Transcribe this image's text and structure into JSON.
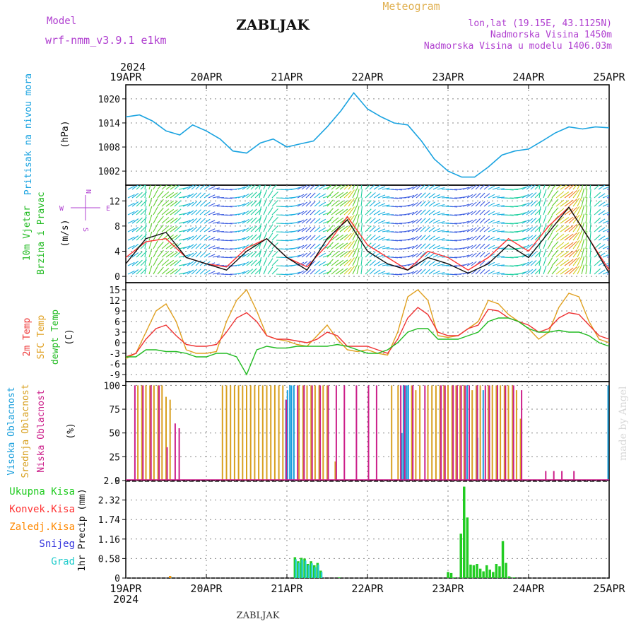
{
  "header": {
    "model_label": "Model",
    "model_name": "wrf-nmm_v3.9.1 e1km",
    "station": "ZABLJAK",
    "meteogram": "Meteogram",
    "coords": "lon,lat (19.15E, 43.1125N)",
    "elevation": "Nadmorska Visina 1450m",
    "model_elevation": "Nadmorska Visina u modelu 1406.03m",
    "year": "2024"
  },
  "footer": {
    "station": "ZABLJAK",
    "year": "2024",
    "credit": "made by Angel"
  },
  "colors": {
    "pressure": "#1aa3e0",
    "wind_speed": "#111111",
    "gust": "#ff3333",
    "t2m": "#ee3333",
    "sfc": "#e0a020",
    "dew": "#22bb22",
    "cloud_high": "#1a9fdc",
    "cloud_mid": "#d8a020",
    "cloud_low": "#cc1f8a",
    "precip_total": "#22cc22",
    "precip_conv": "#ff3333",
    "precip_frozen": "#ff8800",
    "snow": "#3333dd",
    "grad": "#22cccc",
    "purple_text": "#b040d0"
  },
  "chart_data": [
    {
      "type": "line",
      "name": "pressure",
      "ylabel": [
        "Pritisak na nivou mora",
        "(hPa)"
      ],
      "yticks": [
        1002,
        1008,
        1014,
        1020
      ],
      "ylim": [
        998.5,
        1023.5
      ],
      "x_days": [
        0,
        0.17,
        0.33,
        0.5,
        0.67,
        0.83,
        1.0,
        1.17,
        1.33,
        1.5,
        1.67,
        1.83,
        2.0,
        2.17,
        2.33,
        2.5,
        2.67,
        2.83,
        3.0,
        3.17,
        3.33,
        3.5,
        3.67,
        3.83,
        4.0,
        4.17,
        4.33,
        4.5,
        4.67,
        4.83,
        5.0,
        5.17,
        5.33,
        5.5,
        5.67,
        5.83,
        6.0
      ],
      "values": [
        1015.5,
        1016,
        1014.5,
        1012,
        1011,
        1013.5,
        1012,
        1010,
        1007,
        1006.5,
        1009,
        1010,
        1008,
        1008.8,
        1009.5,
        1013,
        1017,
        1021.5,
        1017.5,
        1015.5,
        1014,
        1013.5,
        1009.5,
        1005,
        1002,
        1000.5,
        1000.5,
        1003,
        1006,
        1007,
        1007.5,
        1009.5,
        1011.5,
        1013,
        1012.5,
        1013,
        1012.8
      ]
    },
    {
      "type": "line",
      "name": "wind",
      "ylabel": [
        "10m Vjetar",
        "Brzina i Pravac",
        "(m/s)"
      ],
      "compass": {
        "n": "N",
        "s": "S",
        "w": "W",
        "e": "E"
      },
      "yticks": [
        0,
        4,
        8,
        12
      ],
      "ylim": [
        -1,
        14.5
      ],
      "x_days": [
        0,
        0.25,
        0.5,
        0.75,
        1.0,
        1.25,
        1.5,
        1.75,
        2.0,
        2.25,
        2.5,
        2.75,
        3.0,
        3.25,
        3.5,
        3.75,
        4.0,
        4.25,
        4.5,
        4.75,
        5.0,
        5.25,
        5.5,
        5.75,
        6.0
      ],
      "series": [
        {
          "name": "speed",
          "values": [
            2,
            6,
            7,
            3,
            2,
            1,
            4,
            6,
            3,
            1,
            6,
            9,
            4,
            2,
            1,
            3,
            2,
            0.5,
            2,
            5,
            3,
            7,
            11,
            6,
            0.5
          ]
        },
        {
          "name": "gust",
          "values": [
            3,
            5.5,
            6,
            3,
            2,
            1.5,
            4.5,
            6,
            3,
            1.5,
            5,
            9.5,
            5,
            3,
            1,
            4,
            3,
            1,
            3,
            6,
            4,
            8,
            11,
            6,
            1
          ]
        }
      ]
    },
    {
      "type": "line",
      "name": "temperature",
      "ylabel": [
        "2m Temp",
        "SFC Temp",
        "dewpt Temp",
        "(C)"
      ],
      "yticks": [
        -9,
        -6,
        -3,
        0,
        3,
        6,
        9,
        12,
        15
      ],
      "ylim": [
        -11,
        17
      ],
      "x_days": [
        0,
        0.125,
        0.25,
        0.375,
        0.5,
        0.625,
        0.75,
        0.875,
        1.0,
        1.125,
        1.25,
        1.375,
        1.5,
        1.625,
        1.75,
        1.875,
        2.0,
        2.125,
        2.25,
        2.375,
        2.5,
        2.625,
        2.75,
        2.875,
        3.0,
        3.125,
        3.25,
        3.375,
        3.5,
        3.625,
        3.75,
        3.875,
        4.0,
        4.125,
        4.25,
        4.375,
        4.5,
        4.625,
        4.75,
        4.875,
        5.0,
        5.125,
        5.25,
        5.375,
        5.5,
        5.625,
        5.75,
        5.875,
        6.0
      ],
      "series": [
        {
          "name": "t2m",
          "values": [
            -4,
            -3,
            1,
            4,
            5,
            2,
            -0.5,
            -1,
            -1,
            -0.5,
            3,
            7,
            8.5,
            6,
            2,
            1,
            1,
            0.5,
            0,
            1,
            3,
            2,
            -1,
            -1,
            -1,
            -2,
            -3,
            1,
            7,
            10,
            8,
            3,
            2,
            2,
            4,
            5,
            9.5,
            9,
            7,
            6,
            5,
            3,
            4,
            7,
            8.5,
            8,
            5,
            2,
            1
          ]
        },
        {
          "name": "sfc",
          "values": [
            -4.5,
            -3,
            3,
            9,
            11,
            6,
            -2,
            -3,
            -3,
            -2.5,
            6,
            12,
            15,
            9,
            2,
            1,
            0.5,
            -0.5,
            -1,
            2,
            5,
            1,
            -2,
            -2.5,
            -2,
            -3,
            -3.5,
            3,
            13,
            15,
            12,
            2,
            1.5,
            2,
            4,
            6,
            12,
            11,
            8,
            6,
            4,
            1,
            3,
            10,
            14,
            13,
            6,
            1,
            0
          ]
        },
        {
          "name": "dew",
          "values": [
            -4,
            -4,
            -2,
            -2,
            -2.5,
            -2.5,
            -3,
            -4,
            -4,
            -3,
            -3,
            -4,
            -9,
            -2,
            -1,
            -1.5,
            -1.5,
            -1,
            -1,
            -1,
            -1,
            -0.5,
            -1,
            -2,
            -3,
            -3,
            -2,
            0,
            3,
            4,
            4,
            1,
            1,
            1,
            2,
            3,
            6,
            7,
            7,
            6,
            4,
            3,
            3,
            3.5,
            3,
            3,
            2,
            0,
            -1
          ]
        }
      ]
    },
    {
      "type": "bar",
      "name": "clouds",
      "ylabel": [
        "Visoka Oblacnost",
        "Srednja Oblacnost",
        "Niska Oblacnost",
        "(%)"
      ],
      "yticks": [
        0,
        25,
        50,
        75,
        100
      ],
      "ylim": [
        0,
        104
      ],
      "series": [
        {
          "name": "high",
          "points": [
            [
              2.0,
              85
            ],
            [
              2.02,
              95
            ],
            [
              2.05,
              100
            ],
            [
              2.07,
              100
            ],
            [
              2.1,
              100
            ],
            [
              3.44,
              50
            ],
            [
              3.46,
              100
            ],
            [
              3.48,
              100
            ],
            [
              3.5,
              100
            ],
            [
              3.52,
              100
            ],
            [
              4.25,
              100
            ],
            [
              4.38,
              45
            ],
            [
              4.45,
              95
            ],
            [
              6.0,
              100
            ]
          ]
        },
        {
          "name": "mid",
          "points": [
            [
              0.15,
              100
            ],
            [
              0.2,
              100
            ],
            [
              0.25,
              100
            ],
            [
              0.3,
              100
            ],
            [
              0.35,
              100
            ],
            [
              0.4,
              100
            ],
            [
              0.45,
              100
            ],
            [
              0.5,
              88
            ],
            [
              0.55,
              85
            ],
            [
              1.2,
              100
            ],
            [
              1.25,
              100
            ],
            [
              1.3,
              100
            ],
            [
              1.35,
              100
            ],
            [
              1.4,
              100
            ],
            [
              1.45,
              100
            ],
            [
              1.5,
              100
            ],
            [
              1.55,
              100
            ],
            [
              1.6,
              100
            ],
            [
              1.65,
              100
            ],
            [
              1.7,
              100
            ],
            [
              1.75,
              100
            ],
            [
              1.8,
              100
            ],
            [
              1.85,
              100
            ],
            [
              1.9,
              100
            ],
            [
              1.95,
              100
            ],
            [
              2.15,
              100
            ],
            [
              2.2,
              100
            ],
            [
              2.25,
              100
            ],
            [
              2.3,
              100
            ],
            [
              2.35,
              100
            ],
            [
              2.4,
              100
            ],
            [
              2.45,
              100
            ],
            [
              2.5,
              100
            ],
            [
              2.6,
              20
            ],
            [
              3.3,
              100
            ],
            [
              3.38,
              100
            ],
            [
              3.55,
              100
            ],
            [
              3.6,
              95
            ],
            [
              3.65,
              100
            ],
            [
              3.75,
              100
            ],
            [
              3.8,
              100
            ],
            [
              3.85,
              100
            ],
            [
              3.9,
              100
            ],
            [
              3.95,
              100
            ],
            [
              4.0,
              100
            ],
            [
              4.05,
              100
            ],
            [
              4.1,
              100
            ],
            [
              4.15,
              100
            ],
            [
              4.2,
              100
            ],
            [
              4.3,
              95
            ],
            [
              4.35,
              100
            ],
            [
              4.4,
              100
            ],
            [
              4.5,
              100
            ],
            [
              4.55,
              100
            ],
            [
              4.6,
              100
            ],
            [
              4.65,
              100
            ],
            [
              4.7,
              100
            ],
            [
              4.75,
              100
            ],
            [
              4.8,
              100
            ],
            [
              4.85,
              95
            ],
            [
              4.9,
              65
            ]
          ]
        },
        {
          "name": "low",
          "points": [
            [
              0.1,
              100
            ],
            [
              0.2,
              100
            ],
            [
              0.3,
              100
            ],
            [
              0.4,
              100
            ],
            [
              0.5,
              35
            ],
            [
              0.6,
              60
            ],
            [
              0.65,
              55
            ],
            [
              1.98,
              85
            ],
            [
              2.12,
              100
            ],
            [
              2.2,
              100
            ],
            [
              2.3,
              100
            ],
            [
              2.4,
              100
            ],
            [
              2.5,
              100
            ],
            [
              2.6,
              100
            ],
            [
              2.7,
              100
            ],
            [
              2.85,
              100
            ],
            [
              3.0,
              100
            ],
            [
              3.1,
              100
            ],
            [
              3.4,
              100
            ],
            [
              3.45,
              100
            ],
            [
              3.55,
              100
            ],
            [
              3.7,
              100
            ],
            [
              3.9,
              100
            ],
            [
              3.95,
              100
            ],
            [
              4.05,
              100
            ],
            [
              4.1,
              100
            ],
            [
              4.15,
              100
            ],
            [
              4.2,
              100
            ],
            [
              4.25,
              100
            ],
            [
              4.35,
              100
            ],
            [
              4.45,
              100
            ],
            [
              4.5,
              100
            ],
            [
              4.6,
              100
            ],
            [
              4.7,
              100
            ],
            [
              4.8,
              100
            ],
            [
              4.9,
              95
            ],
            [
              5.2,
              10
            ],
            [
              5.3,
              10
            ],
            [
              5.4,
              10
            ],
            [
              5.55,
              10
            ]
          ]
        }
      ]
    },
    {
      "type": "bar",
      "name": "precipitation",
      "ylabel": [
        "1hr Precip (mm)"
      ],
      "legend": [
        "Ukupna Kisa",
        "Konvek.Kisa",
        "Zaledj.Kisa",
        "Snijeg",
        "Grad"
      ],
      "yticks": [
        0,
        0.58,
        1.16,
        1.74,
        2.32,
        2.9
      ],
      "ylim": [
        0,
        2.9
      ],
      "series": [
        {
          "name": "total",
          "points": [
            [
              0.55,
              0.05
            ],
            [
              2.1,
              0.62
            ],
            [
              2.14,
              0.5
            ],
            [
              2.18,
              0.6
            ],
            [
              2.22,
              0.58
            ],
            [
              2.26,
              0.42
            ],
            [
              2.3,
              0.5
            ],
            [
              2.34,
              0.38
            ],
            [
              2.38,
              0.45
            ],
            [
              2.42,
              0.22
            ],
            [
              2.65,
              0.02
            ],
            [
              4.0,
              0.18
            ],
            [
              4.04,
              0.15
            ],
            [
              4.08,
              0.02
            ],
            [
              4.16,
              1.32
            ],
            [
              4.2,
              2.72
            ],
            [
              4.24,
              1.8
            ],
            [
              4.28,
              0.4
            ],
            [
              4.32,
              0.38
            ],
            [
              4.36,
              0.42
            ],
            [
              4.4,
              0.28
            ],
            [
              4.44,
              0.2
            ],
            [
              4.48,
              0.38
            ],
            [
              4.52,
              0.25
            ],
            [
              4.56,
              0.18
            ],
            [
              4.6,
              0.42
            ],
            [
              4.64,
              0.35
            ],
            [
              4.68,
              1.1
            ],
            [
              4.72,
              0.45
            ],
            [
              4.76,
              0.05
            ],
            [
              4.82,
              0.02
            ]
          ]
        },
        {
          "name": "frozen",
          "points": [
            [
              0.55,
              0.06
            ]
          ]
        },
        {
          "name": "grad",
          "points": [
            [
              2.11,
              0.56
            ],
            [
              2.15,
              0.45
            ],
            [
              2.19,
              0.55
            ],
            [
              2.23,
              0.52
            ],
            [
              2.27,
              0.38
            ],
            [
              2.31,
              0.44
            ],
            [
              2.35,
              0.32
            ],
            [
              2.39,
              0.4
            ],
            [
              2.43,
              0.18
            ]
          ]
        }
      ]
    }
  ],
  "x_axis": {
    "labels": [
      "19APR",
      "20APR",
      "21APR",
      "22APR",
      "23APR",
      "24APR",
      "25APR"
    ]
  }
}
